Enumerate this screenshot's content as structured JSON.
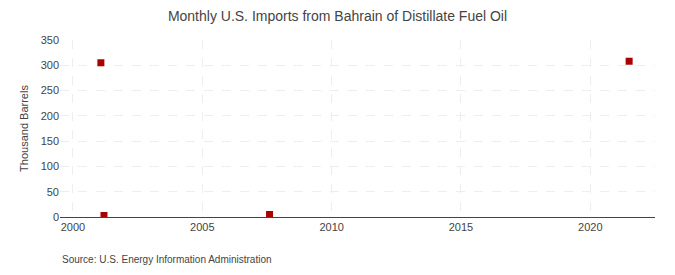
{
  "chart_data": {
    "type": "scatter",
    "title": "Monthly U.S. Imports from Bahrain of Distillate Fuel Oil",
    "y_label": "Thousand Barrels",
    "annotations": [
      "Source: U.S. Energy Information Administration"
    ],
    "x": [
      2001.2,
      2001.08,
      2007.6,
      2021.5
    ],
    "values": [
      3,
      305,
      5,
      308
    ],
    "color": "#AA0000",
    "marker": "square",
    "xlim": [
      1999.5,
      2022.5
    ],
    "xticks": [
      2000,
      2005,
      2010,
      2015,
      2020
    ],
    "ylim": [
      0,
      350
    ],
    "yticks": [
      0,
      50,
      100,
      150,
      200,
      250,
      300,
      350
    ],
    "grid": true
  }
}
